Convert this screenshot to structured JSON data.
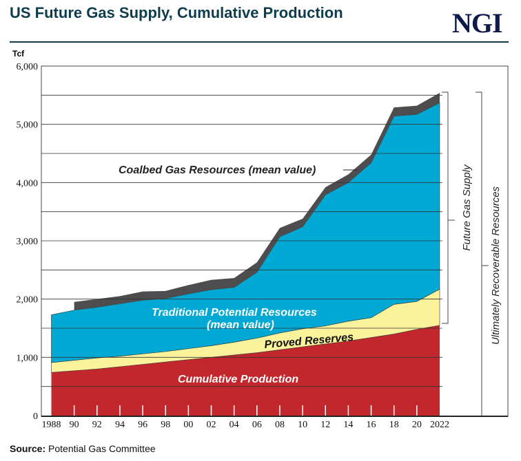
{
  "title": "US Future Gas Supply, Cumulative Production",
  "logo_text": "NGI",
  "source_label": "Source:",
  "source_text": "Potential Gas Committee",
  "chart_data": {
    "type": "area",
    "stacked": true,
    "title": "US Future Gas Supply, Cumulative Production",
    "ylabel": "Tcf",
    "ylim": [
      0,
      6000
    ],
    "yticks": [
      0,
      1000,
      2000,
      3000,
      4000,
      5000,
      6000
    ],
    "ytick_labels": [
      "0",
      "1,000",
      "2,000",
      "3,000",
      "4,000",
      "5,000",
      "6,000"
    ],
    "grid": true,
    "x": [
      1988,
      1990,
      1992,
      1994,
      1996,
      1998,
      2000,
      2002,
      2004,
      2006,
      2008,
      2010,
      2012,
      2014,
      2016,
      2018,
      2020,
      2022
    ],
    "xtick_labels": [
      "1988",
      "90",
      "92",
      "94",
      "96",
      "98",
      "00",
      "02",
      "04",
      "06",
      "08",
      "10",
      "12",
      "14",
      "16",
      "18",
      "20",
      "2022"
    ],
    "series": [
      {
        "name": "Cumulative Production",
        "color": "#c1272d",
        "values": [
          740,
          770,
          800,
          840,
          880,
          920,
          960,
          1000,
          1040,
          1080,
          1130,
          1180,
          1230,
          1280,
          1340,
          1400,
          1480,
          1550
        ]
      },
      {
        "name": "Proved Reserves",
        "color": "#fbf29c",
        "values": [
          170,
          180,
          190,
          180,
          180,
          180,
          190,
          200,
          220,
          250,
          290,
          310,
          310,
          340,
          340,
          510,
          480,
          620
        ]
      },
      {
        "name": "Traditional Potential Resources (mean value)",
        "color": "#00a9d4",
        "values": [
          820,
          860,
          870,
          900,
          920,
          910,
          940,
          960,
          940,
          1130,
          1650,
          1750,
          2250,
          2380,
          2660,
          3230,
          3210,
          3200
        ]
      },
      {
        "name": "Coalbed Gas Resources (mean value)",
        "color": "#4d4d4f",
        "values": [
          null,
          140,
          140,
          130,
          150,
          130,
          150,
          170,
          160,
          170,
          150,
          140,
          130,
          140,
          140,
          150,
          150,
          170
        ]
      }
    ],
    "annotations": {
      "cumulative": "Cumulative Production",
      "proved": "Proved Reserves",
      "traditional_1": "Traditional Potential Resources",
      "traditional_2": "(mean value)",
      "coalbed": "Coalbed Gas Resources (mean value)",
      "future_supply": "Future Gas Supply",
      "urr": "Ultimately Recoverable Resources"
    }
  }
}
